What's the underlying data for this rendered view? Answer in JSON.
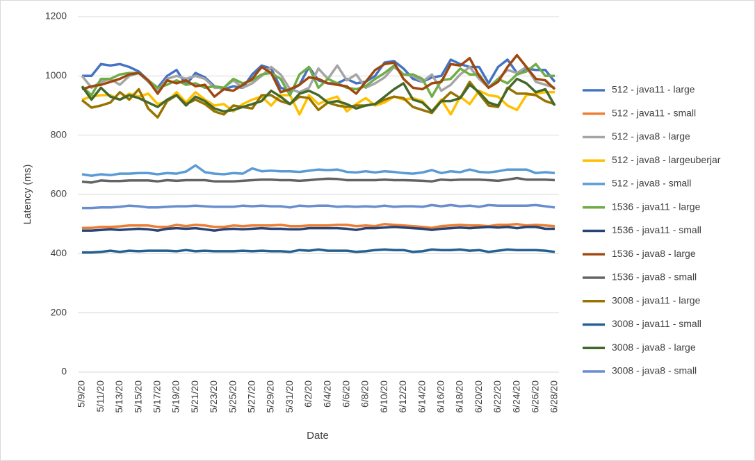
{
  "chart_data": {
    "type": "line",
    "x_label": "Date",
    "y_label": "Latency (ms)",
    "categories": [
      "5/9/20",
      null,
      "5/11/20",
      null,
      "5/13/20",
      null,
      "5/15/20",
      null,
      "5/17/20",
      null,
      "5/19/20",
      null,
      "5/21/20",
      null,
      "5/23/20",
      null,
      "5/25/20",
      null,
      "5/27/20",
      null,
      "5/29/20",
      null,
      "5/31/20",
      null,
      "6/2/20",
      null,
      "6/4/20",
      null,
      "6/6/20",
      null,
      "6/8/20",
      null,
      "6/10/20",
      null,
      "6/12/20",
      null,
      "6/14/20",
      null,
      "6/16/20",
      null,
      "6/18/20",
      null,
      "6/20/20",
      null,
      "6/22/20",
      null,
      "6/24/20",
      null,
      "6/26/20",
      null,
      "6/28/20"
    ],
    "ylim": [
      0,
      1200
    ],
    "yticks": [
      0,
      200,
      400,
      600,
      800,
      1000,
      {
        "value": 1200,
        "label": "1200"
      }
    ],
    "grid": true,
    "legend": "right",
    "series": [
      {
        "name": "512 - java11 - large",
        "color": "#4472c4",
        "values": [
          1000,
          1000,
          1040,
          1035,
          1040,
          1030,
          1015,
          985,
          960,
          1000,
          1020,
          970,
          1010,
          995,
          965,
          955,
          965,
          960,
          1005,
          1035,
          1025,
          960,
          950,
          970,
          1030,
          985,
          975,
          975,
          990,
          975,
          980,
          1000,
          1045,
          1050,
          1025,
          990,
          980,
          995,
          1000,
          1055,
          1040,
          1030,
          1030,
          975,
          1030,
          1055,
          1010,
          1025,
          1020,
          1020,
          980
        ]
      },
      {
        "name": "512 - java11 - small",
        "color": "#ed7d31",
        "values": [
          487,
          487,
          490,
          490,
          492,
          495,
          495,
          495,
          490,
          490,
          497,
          493,
          497,
          495,
          490,
          490,
          495,
          493,
          495,
          495,
          495,
          497,
          493,
          493,
          495,
          495,
          495,
          497,
          497,
          493,
          495,
          493,
          500,
          497,
          495,
          493,
          490,
          487,
          493,
          495,
          497,
          495,
          495,
          493,
          497,
          497,
          500,
          495,
          497,
          495,
          493
        ]
      },
      {
        "name": "512 - java8 - large",
        "color": "#a5a5a5",
        "values": [
          1000,
          960,
          980,
          990,
          970,
          1000,
          1010,
          980,
          950,
          990,
          1000,
          990,
          1000,
          990,
          960,
          960,
          985,
          960,
          975,
          1000,
          1030,
          1005,
          955,
          945,
          960,
          1025,
          990,
          1035,
          985,
          1005,
          960,
          975,
          995,
          1030,
          1005,
          1000,
          980,
          1005,
          950,
          970,
          1005,
          1030,
          990,
          960,
          990,
          1020,
          1010,
          1030,
          980,
          970,
          960
        ]
      },
      {
        "name": "512 - java8 - largeuberjar",
        "color": "#ffc000",
        "values": [
          920,
          930,
          935,
          935,
          920,
          940,
          930,
          940,
          905,
          915,
          945,
          910,
          945,
          920,
          900,
          905,
          880,
          905,
          920,
          930,
          900,
          935,
          935,
          870,
          935,
          905,
          920,
          930,
          880,
          905,
          925,
          900,
          910,
          930,
          920,
          925,
          915,
          880,
          920,
          870,
          930,
          905,
          950,
          935,
          930,
          900,
          885,
          935,
          940,
          945,
          945
        ]
      },
      {
        "name": "512 - java8 - small",
        "color": "#5b9bd5",
        "values": [
          668,
          663,
          668,
          665,
          670,
          670,
          672,
          672,
          668,
          672,
          670,
          677,
          698,
          675,
          670,
          668,
          672,
          670,
          688,
          678,
          680,
          678,
          678,
          676,
          680,
          684,
          682,
          684,
          676,
          674,
          678,
          674,
          678,
          676,
          672,
          670,
          674,
          682,
          672,
          678,
          675,
          684,
          676,
          674,
          678,
          684,
          684,
          684,
          672,
          675,
          672
        ]
      },
      {
        "name": "1536 - java11 - large",
        "color": "#70ad47",
        "values": [
          965,
          935,
          990,
          990,
          1005,
          1010,
          1010,
          985,
          960,
          970,
          985,
          970,
          975,
          960,
          965,
          960,
          990,
          975,
          985,
          1005,
          1010,
          990,
          935,
          1005,
          1030,
          960,
          990,
          975,
          960,
          955,
          965,
          990,
          1010,
          1035,
          1005,
          1005,
          990,
          930,
          985,
          990,
          1025,
          1005,
          1005,
          960,
          990,
          975,
          1005,
          1015,
          1040,
          1000,
          1000
        ]
      },
      {
        "name": "1536 - java11 - small",
        "color": "#264478",
        "values": [
          478,
          478,
          480,
          482,
          480,
          482,
          484,
          482,
          478,
          484,
          486,
          484,
          486,
          482,
          478,
          482,
          484,
          482,
          484,
          486,
          484,
          484,
          482,
          482,
          486,
          486,
          486,
          486,
          484,
          480,
          486,
          486,
          488,
          490,
          488,
          486,
          484,
          480,
          484,
          486,
          488,
          486,
          488,
          490,
          488,
          490,
          486,
          490,
          490,
          484,
          484
        ]
      },
      {
        "name": "1536 - java8 - large",
        "color": "#9e480e",
        "values": [
          955,
          965,
          970,
          980,
          990,
          1005,
          1010,
          985,
          940,
          985,
          975,
          985,
          965,
          970,
          930,
          955,
          950,
          970,
          990,
          1030,
          1010,
          945,
          955,
          970,
          995,
          990,
          975,
          970,
          965,
          940,
          980,
          1020,
          1040,
          1045,
          990,
          960,
          955,
          975,
          980,
          1040,
          1035,
          1060,
          1000,
          960,
          980,
          1030,
          1070,
          1030,
          990,
          985,
          955
        ]
      },
      {
        "name": "1536 - java8 - small",
        "color": "#636363",
        "values": [
          643,
          640,
          647,
          645,
          645,
          647,
          647,
          647,
          644,
          648,
          646,
          648,
          648,
          648,
          644,
          644,
          644,
          646,
          648,
          650,
          650,
          648,
          648,
          646,
          648,
          651,
          653,
          652,
          648,
          648,
          648,
          648,
          650,
          648,
          648,
          647,
          646,
          644,
          650,
          648,
          650,
          650,
          650,
          648,
          646,
          650,
          655,
          650,
          650,
          650,
          648
        ]
      },
      {
        "name": "3008 - java11 - large",
        "color": "#997300",
        "values": [
          918,
          893,
          900,
          910,
          945,
          920,
          955,
          890,
          860,
          915,
          935,
          905,
          920,
          905,
          880,
          870,
          900,
          895,
          890,
          935,
          935,
          915,
          905,
          930,
          925,
          885,
          910,
          900,
          895,
          900,
          900,
          905,
          920,
          930,
          925,
          895,
          885,
          875,
          915,
          945,
          925,
          980,
          940,
          900,
          895,
          960,
          940,
          940,
          935,
          915,
          905
        ]
      },
      {
        "name": "3008 - java11 - small",
        "color": "#255e91",
        "values": [
          404,
          404,
          406,
          410,
          406,
          410,
          408,
          410,
          410,
          410,
          408,
          412,
          408,
          410,
          408,
          408,
          408,
          410,
          408,
          410,
          408,
          408,
          406,
          412,
          410,
          414,
          410,
          410,
          410,
          406,
          408,
          412,
          414,
          412,
          412,
          406,
          408,
          414,
          412,
          412,
          414,
          410,
          412,
          406,
          410,
          414,
          412,
          412,
          412,
          410,
          406
        ]
      },
      {
        "name": "3008 - java8 - large",
        "color": "#43682b",
        "values": [
          965,
          920,
          960,
          930,
          920,
          935,
          925,
          910,
          895,
          920,
          935,
          900,
          930,
          915,
          890,
          880,
          885,
          895,
          905,
          915,
          950,
          930,
          905,
          940,
          950,
          935,
          910,
          915,
          905,
          890,
          900,
          905,
          930,
          955,
          975,
          920,
          910,
          880,
          915,
          915,
          925,
          970,
          945,
          910,
          900,
          955,
          990,
          975,
          945,
          955,
          900
        ]
      },
      {
        "name": "3008 - java8 - small",
        "color": "#698ed0",
        "values": [
          554,
          554,
          556,
          556,
          558,
          562,
          560,
          556,
          556,
          558,
          560,
          560,
          562,
          560,
          558,
          558,
          558,
          562,
          560,
          562,
          560,
          560,
          556,
          562,
          560,
          562,
          562,
          558,
          560,
          558,
          560,
          558,
          562,
          558,
          560,
          560,
          558,
          564,
          560,
          564,
          560,
          562,
          558,
          564,
          562,
          562,
          562,
          562,
          564,
          560,
          556
        ]
      }
    ]
  }
}
